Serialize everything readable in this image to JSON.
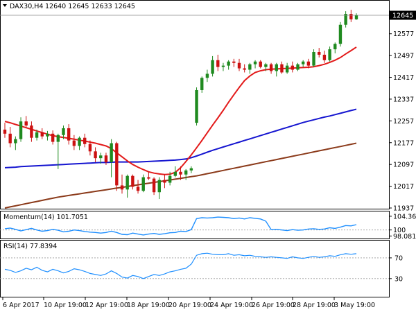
{
  "header": {
    "symbol": "DAX30,H4",
    "ohlc": "12640 12645 12633 12645"
  },
  "chart_data": [
    {
      "type": "candlestick",
      "panel": "price",
      "title": "DAX30,H4 12640 12645 12633 12645",
      "ylim": [
        11937,
        12685
      ],
      "y_ticks": [
        11937,
        12017,
        12097,
        12177,
        12257,
        12337,
        12417,
        12497,
        12577,
        12645
      ],
      "y_tick_labels": [
        "11937",
        "12017",
        "12097",
        "12177",
        "12257",
        "12337",
        "12417",
        "12497",
        "12577",
        ""
      ],
      "last_price": 12645,
      "last_price_label": "12645",
      "colors": {
        "bull": "#1f8a1f",
        "bear": "#cc1111",
        "ma_fast": "#e31a1a",
        "ma_mid": "#1515d0",
        "ma_slow": "#8b3a1a",
        "axis": "#000000"
      },
      "candles": [
        [
          12225,
          12250,
          12195,
          12210
        ],
        [
          12210,
          12235,
          12160,
          12175
        ],
        [
          12175,
          12200,
          12150,
          12190
        ],
        [
          12190,
          12270,
          12180,
          12255
        ],
        [
          12255,
          12275,
          12230,
          12240
        ],
        [
          12240,
          12255,
          12180,
          12195
        ],
        [
          12195,
          12225,
          12185,
          12215
        ],
        [
          12215,
          12230,
          12190,
          12200
        ],
        [
          12200,
          12220,
          12185,
          12210
        ],
        [
          12210,
          12222,
          12170,
          12180
        ],
        [
          12180,
          12210,
          12080,
          12205
        ],
        [
          12205,
          12240,
          12190,
          12230
        ],
        [
          12230,
          12245,
          12170,
          12185
        ],
        [
          12185,
          12205,
          12150,
          12165
        ],
        [
          12165,
          12200,
          12150,
          12195
        ],
        [
          12195,
          12210,
          12160,
          12172
        ],
        [
          12172,
          12185,
          12130,
          12145
        ],
        [
          12145,
          12160,
          12105,
          12120
        ],
        [
          12120,
          12140,
          12100,
          12130
        ],
        [
          12130,
          12140,
          12095,
          12105
        ],
        [
          12105,
          12190,
          12050,
          12175
        ],
        [
          12175,
          12180,
          12000,
          12020
        ],
        [
          12020,
          12060,
          11990,
          12005
        ],
        [
          12005,
          12060,
          11975,
          12055
        ],
        [
          12055,
          12060,
          12005,
          12015
        ],
        [
          12015,
          12040,
          11990,
          12000
        ],
        [
          12000,
          12060,
          11995,
          12050
        ],
        [
          12050,
          12070,
          12040,
          12045
        ],
        [
          12045,
          12050,
          11985,
          11995
        ],
        [
          11995,
          12050,
          11970,
          12040
        ],
        [
          12040,
          12060,
          12010,
          12030
        ],
        [
          12030,
          12070,
          12020,
          12055
        ],
        [
          12055,
          12090,
          12050,
          12070
        ],
        [
          12070,
          12090,
          12040,
          12060
        ],
        [
          12060,
          12080,
          12040,
          12075
        ],
        [
          12075,
          12090,
          12065,
          12083
        ],
        [
          12250,
          12380,
          12240,
          12370
        ],
        [
          12370,
          12420,
          12360,
          12415
        ],
        [
          12415,
          12445,
          12400,
          12430
        ],
        [
          12430,
          12495,
          12420,
          12480
        ],
        [
          12480,
          12500,
          12440,
          12455
        ],
        [
          12455,
          12470,
          12440,
          12460
        ],
        [
          12460,
          12480,
          12445,
          12475
        ],
        [
          12475,
          12485,
          12455,
          12470
        ],
        [
          12470,
          12485,
          12440,
          12450
        ],
        [
          12450,
          12465,
          12435,
          12445
        ],
        [
          12445,
          12470,
          12430,
          12465
        ],
        [
          12465,
          12480,
          12450,
          12475
        ],
        [
          12475,
          12480,
          12450,
          12455
        ],
        [
          12455,
          12470,
          12440,
          12465
        ],
        [
          12465,
          12470,
          12430,
          12440
        ],
        [
          12440,
          12470,
          12420,
          12465
        ],
        [
          12465,
          12475,
          12430,
          12435
        ],
        [
          12435,
          12470,
          12430,
          12460
        ],
        [
          12460,
          12475,
          12435,
          12445
        ],
        [
          12445,
          12470,
          12440,
          12465
        ],
        [
          12465,
          12480,
          12455,
          12475
        ],
        [
          12475,
          12485,
          12450,
          12460
        ],
        [
          12460,
          12520,
          12455,
          12510
        ],
        [
          12510,
          12525,
          12490,
          12500
        ],
        [
          12500,
          12515,
          12470,
          12480
        ],
        [
          12480,
          12530,
          12475,
          12520
        ],
        [
          12520,
          12545,
          12505,
          12540
        ],
        [
          12540,
          12620,
          12530,
          12610
        ],
        [
          12610,
          12660,
          12600,
          12650
        ],
        [
          12650,
          12665,
          12620,
          12630
        ],
        [
          12630,
          12652,
          12628,
          12645
        ]
      ],
      "ma_fast": [
        12255,
        12250,
        12244,
        12238,
        12232,
        12226,
        12220,
        12214,
        12208,
        12203,
        12199,
        12196,
        12193,
        12190,
        12186,
        12183,
        12179,
        12175,
        12170,
        12165,
        12155,
        12140,
        12125,
        12110,
        12097,
        12087,
        12078,
        12070,
        12065,
        12062,
        12060,
        12061,
        12068,
        12085,
        12108,
        12132,
        12158,
        12185,
        12213,
        12241,
        12268,
        12296,
        12325,
        12353,
        12380,
        12405,
        12422,
        12435,
        12441,
        12445,
        12447,
        12448,
        12449,
        12450,
        12451,
        12452,
        12453,
        12454,
        12456,
        12460,
        12465,
        12472,
        12480,
        12490,
        12503,
        12515,
        12528
      ],
      "ma_mid": [
        12085,
        12086,
        12087,
        12089,
        12090,
        12091,
        12092,
        12093,
        12094,
        12095,
        12096,
        12097,
        12098,
        12099,
        12100,
        12101,
        12102,
        12103,
        12104,
        12104,
        12105,
        12106,
        12106,
        12106,
        12106,
        12106,
        12107,
        12108,
        12109,
        12110,
        12111,
        12112,
        12113,
        12115,
        12117,
        12122,
        12128,
        12135,
        12142,
        12149,
        12155,
        12161,
        12167,
        12173,
        12179,
        12185,
        12191,
        12197,
        12203,
        12209,
        12215,
        12221,
        12227,
        12233,
        12239,
        12245,
        12251,
        12256,
        12261,
        12266,
        12271,
        12275,
        12280,
        12285,
        12290,
        12295,
        12300
      ],
      "ma_slow": [
        11937,
        11941,
        11945,
        11949,
        11953,
        11957,
        11961,
        11965,
        11969,
        11973,
        11977,
        11980,
        11983,
        11986,
        11989,
        11992,
        11995,
        11998,
        12001,
        12004,
        12007,
        12010,
        12013,
        12016,
        12019,
        12022,
        12025,
        12028,
        12031,
        12034,
        12037,
        12040,
        12043,
        12046,
        12049,
        12052,
        12055,
        12059,
        12063,
        12067,
        12071,
        12075,
        12079,
        12083,
        12087,
        12091,
        12095,
        12099,
        12103,
        12107,
        12111,
        12115,
        12119,
        12123,
        12127,
        12131,
        12135,
        12139,
        12143,
        12147,
        12151,
        12155,
        12159,
        12163,
        12167,
        12171,
        12175
      ],
      "x_tick_labels": [
        "6 Apr 2017",
        "10 Apr 19:00",
        "12 Apr 19:00",
        "18 Apr 19:00",
        "20 Apr 19:00",
        "24 Apr 19:00",
        "26 Apr 19:00",
        "28 Apr 19:00",
        "3 May 19:00"
      ]
    },
    {
      "type": "line",
      "panel": "momentum",
      "title": "Momentum(14) 101.7051",
      "ylim": [
        97.5,
        105.0
      ],
      "y_tick_labels": [
        "104.3609",
        "100",
        "98.0814"
      ],
      "y_ticks": [
        104.3609,
        100,
        98.0814
      ],
      "reference_line": 100,
      "color": "#1e8fff",
      "values": [
        100.4,
        100.6,
        100.2,
        99.7,
        100.1,
        100.5,
        100.0,
        99.6,
        99.8,
        100.2,
        99.9,
        99.4,
        99.6,
        100.0,
        99.8,
        99.5,
        99.3,
        99.2,
        99.0,
        99.2,
        99.6,
        99.2,
        98.6,
        98.5,
        99.0,
        98.7,
        98.4,
        98.7,
        98.9,
        98.6,
        98.8,
        99.1,
        99.2,
        99.6,
        99.5,
        100.1,
        103.6,
        103.9,
        103.8,
        103.9,
        104.1,
        104.0,
        103.9,
        103.6,
        103.8,
        103.5,
        103.9,
        103.7,
        103.5,
        102.8,
        100.1,
        100.2,
        100.0,
        99.8,
        100.1,
        99.9,
        100.0,
        100.3,
        100.4,
        100.2,
        100.3,
        100.7,
        100.5,
        100.9,
        101.4,
        101.3,
        101.7
      ]
    },
    {
      "type": "line",
      "panel": "rsi",
      "title": "RSI(14) 77.8394",
      "ylim": [
        -5,
        102
      ],
      "y_tick_labels": [
        "70",
        "30"
      ],
      "y_ticks": [
        70,
        30
      ],
      "reference_lines": [
        70,
        30
      ],
      "color": "#1e8fff",
      "values": [
        48,
        46,
        42,
        45,
        50,
        47,
        52,
        46,
        43,
        48,
        45,
        41,
        44,
        49,
        47,
        44,
        40,
        38,
        36,
        39,
        45,
        40,
        33,
        31,
        36,
        34,
        30,
        34,
        38,
        36,
        39,
        43,
        45,
        48,
        50,
        58,
        75,
        78,
        79,
        77,
        76,
        76,
        78,
        75,
        76,
        74,
        75,
        73,
        72,
        71,
        72,
        71,
        70,
        69,
        72,
        70,
        69,
        71,
        73,
        71,
        72,
        74,
        73,
        76,
        78,
        77,
        78
      ]
    }
  ]
}
